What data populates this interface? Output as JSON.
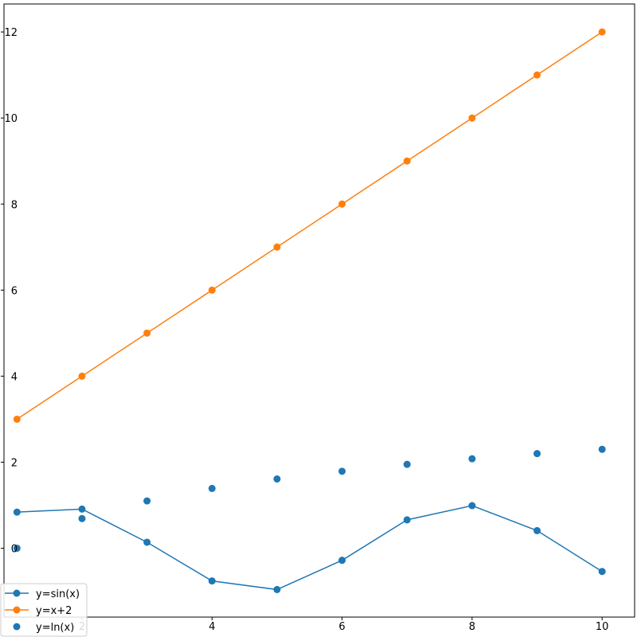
{
  "chart_data": {
    "type": "line",
    "title": "",
    "xlabel": "",
    "ylabel": "",
    "xlim": [
      0.8,
      10.5
    ],
    "ylim": [
      -1.6,
      12.65
    ],
    "x_ticks": [
      2,
      4,
      6,
      8,
      10
    ],
    "x_tick_labels": [
      "2",
      "4",
      "6",
      "8",
      "10"
    ],
    "y_ticks": [
      0,
      2,
      4,
      6,
      8,
      10,
      12
    ],
    "y_tick_labels": [
      "0",
      "2",
      "4",
      "6",
      "8",
      "10",
      "12"
    ],
    "grid": false,
    "legend_position": "lower-left",
    "series": [
      {
        "name": "y=sin(x)",
        "style": "line-marker",
        "color": "#1f77b4",
        "x": [
          1,
          2,
          3,
          4,
          5,
          6,
          7,
          8,
          9,
          10
        ],
        "y": [
          0.84,
          0.91,
          0.14,
          -0.76,
          -0.96,
          -0.28,
          0.66,
          0.99,
          0.41,
          -0.54
        ]
      },
      {
        "name": "y=x+2",
        "style": "line-marker",
        "color": "#ff7f0e",
        "x": [
          1,
          2,
          3,
          4,
          5,
          6,
          7,
          8,
          9,
          10
        ],
        "y": [
          3,
          4,
          5,
          6,
          7,
          8,
          9,
          10,
          11,
          12
        ]
      },
      {
        "name": "y=ln(x)",
        "style": "scatter",
        "color": "#1f77b4",
        "x": [
          1,
          2,
          3,
          4,
          5,
          6,
          7,
          8,
          9,
          10
        ],
        "y": [
          0.0,
          0.69,
          1.1,
          1.39,
          1.61,
          1.79,
          1.95,
          2.08,
          2.2,
          2.3
        ]
      }
    ]
  }
}
